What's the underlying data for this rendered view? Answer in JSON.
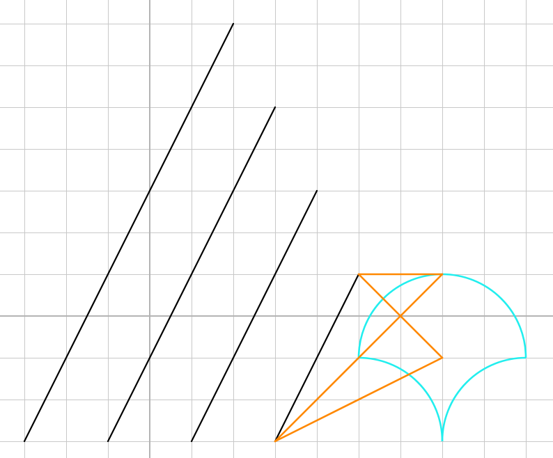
{
  "grid": {
    "x_range": [
      -3.6,
      9.63
    ],
    "y_range": [
      -3,
      7.6
    ],
    "step": 1,
    "show_grid": true,
    "show_axes": true,
    "grid_color": "#c8c8c8",
    "axis_color": "#b4b4b4"
  },
  "colors": {
    "background": "#ffffff",
    "black_lines": "#000000",
    "orange_lines": "#ff8800",
    "cyan_arcs": "#22eeee"
  },
  "black_segments": [
    {
      "from": [
        -3,
        -3
      ],
      "to": [
        2,
        7
      ]
    },
    {
      "from": [
        -1,
        -3
      ],
      "to": [
        3,
        5
      ]
    },
    {
      "from": [
        1,
        -3
      ],
      "to": [
        4,
        3
      ]
    },
    {
      "from": [
        3,
        -3
      ],
      "to": [
        5,
        1
      ]
    }
  ],
  "orange_segments": [
    {
      "from": [
        5,
        1
      ],
      "to": [
        7,
        1
      ]
    },
    {
      "from": [
        5,
        1
      ],
      "to": [
        7,
        -1
      ]
    },
    {
      "from": [
        7,
        1
      ],
      "to": [
        3,
        -3
      ]
    },
    {
      "from": [
        7,
        -1
      ],
      "to": [
        3,
        -3
      ]
    }
  ],
  "cyan_arcs": [
    {
      "center": [
        7,
        -1
      ],
      "radius": 2,
      "start_deg": 0,
      "end_deg": 180
    },
    {
      "center": [
        5,
        -3
      ],
      "radius": 2,
      "start_deg": 0,
      "end_deg": 90
    },
    {
      "center": [
        9,
        -3
      ],
      "radius": 2,
      "start_deg": 90,
      "end_deg": 180
    }
  ]
}
